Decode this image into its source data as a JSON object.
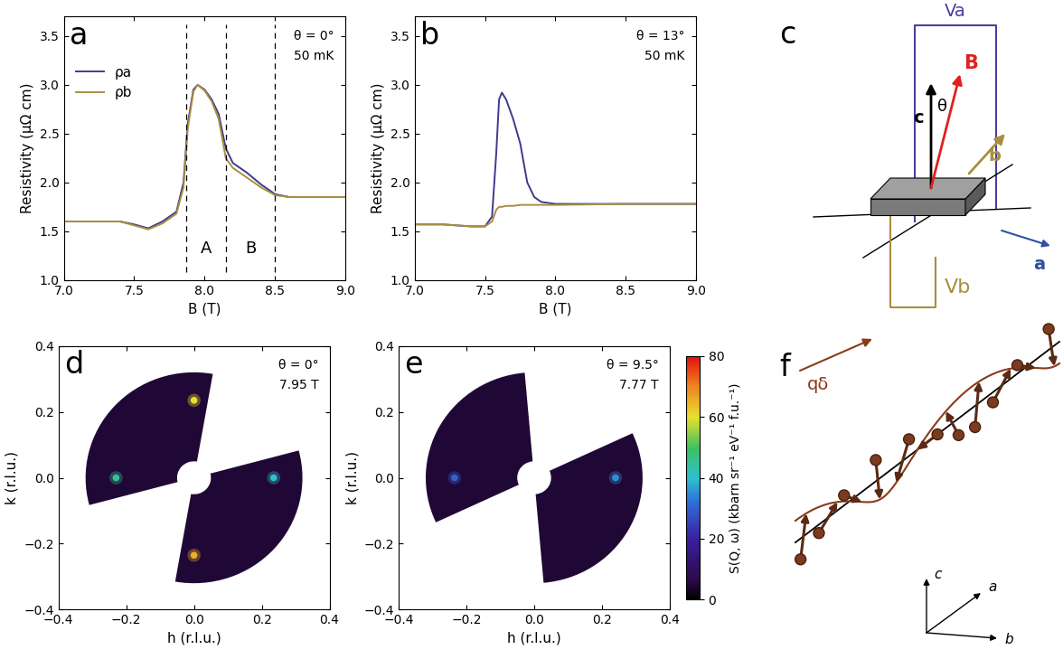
{
  "chart_data": [
    {
      "panel": "a",
      "type": "line",
      "annotations": [
        "θ = 0°",
        "50 mK"
      ],
      "x_label": "B (T)",
      "y_label": "Resistivity (μΩ cm)",
      "x": [
        7.0,
        7.2,
        7.4,
        7.5,
        7.6,
        7.7,
        7.8,
        7.85,
        7.88,
        7.92,
        7.95,
        8.0,
        8.05,
        8.1,
        8.15,
        8.2,
        8.3,
        8.4,
        8.5,
        8.6,
        8.8,
        9.0
      ],
      "series": [
        {
          "name": "ρa",
          "color": "#3f3a8c",
          "values": [
            1.6,
            1.6,
            1.6,
            1.57,
            1.53,
            1.6,
            1.7,
            2.0,
            2.6,
            2.95,
            3.0,
            2.95,
            2.85,
            2.7,
            2.35,
            2.2,
            2.1,
            1.98,
            1.88,
            1.85,
            1.85,
            1.85
          ]
        },
        {
          "name": "ρb",
          "color": "#a88f40",
          "values": [
            1.6,
            1.6,
            1.6,
            1.56,
            1.52,
            1.58,
            1.68,
            1.95,
            2.55,
            2.93,
            3.0,
            2.94,
            2.83,
            2.65,
            2.25,
            2.15,
            2.05,
            1.95,
            1.87,
            1.85,
            1.85,
            1.85
          ]
        }
      ],
      "xlim": [
        7.0,
        9.0
      ],
      "xticks": [
        {
          "value": 7.0,
          "label": "7.0"
        },
        7.5,
        {
          "value": 8.0,
          "label": "8.0"
        },
        8.5,
        {
          "value": 9.0,
          "label": "9.0"
        }
      ],
      "ylim": [
        1.0,
        3.7
      ],
      "yticks": [
        {
          "value": 1.0,
          "label": "1.0"
        },
        1.5,
        {
          "value": 2.0,
          "label": "2.0"
        },
        2.5,
        {
          "value": 3.0,
          "label": "3.0"
        },
        3.5
      ],
      "legend": "upper left",
      "regions": [
        {
          "label": "A",
          "from": 7.87,
          "to": 8.15
        },
        {
          "label": "B",
          "from": 8.15,
          "to": 8.5
        }
      ]
    },
    {
      "panel": "b",
      "type": "line",
      "annotations": [
        "θ = 13°",
        "50 mK"
      ],
      "x_label": "B (T)",
      "y_label": "Resistivity (μΩ cm)",
      "x": [
        7.0,
        7.2,
        7.4,
        7.5,
        7.55,
        7.58,
        7.6,
        7.62,
        7.65,
        7.7,
        7.75,
        7.8,
        7.85,
        7.9,
        8.0,
        8.5,
        9.0
      ],
      "series": [
        {
          "name": "ρa",
          "color": "#3f3a8c",
          "values": [
            1.57,
            1.57,
            1.55,
            1.55,
            1.65,
            2.3,
            2.85,
            2.92,
            2.85,
            2.65,
            2.4,
            2.0,
            1.85,
            1.8,
            1.78,
            1.78,
            1.78
          ]
        },
        {
          "name": "ρb",
          "color": "#a88f40",
          "values": [
            1.57,
            1.57,
            1.55,
            1.55,
            1.6,
            1.72,
            1.75,
            1.75,
            1.76,
            1.76,
            1.77,
            1.77,
            1.77,
            1.77,
            1.77,
            1.78,
            1.78
          ]
        }
      ],
      "xlim": [
        7.0,
        9.0
      ],
      "xticks": [
        {
          "value": 7.0,
          "label": "7.0"
        },
        7.5,
        {
          "value": 8.0,
          "label": "8.0"
        },
        8.5,
        {
          "value": 9.0,
          "label": "9.0"
        }
      ],
      "ylim": [
        1.0,
        3.7
      ],
      "yticks": [
        {
          "value": 1.0,
          "label": "1.0"
        },
        1.5,
        {
          "value": 2.0,
          "label": "2.0"
        },
        2.5,
        {
          "value": 3.0,
          "label": "3.0"
        },
        3.5
      ]
    },
    {
      "panel": "d",
      "type": "heatmap",
      "annotations": [
        "θ = 0°",
        "7.95 T"
      ],
      "x_label": "h (r.l.u.)",
      "y_label": "k (r.l.u.)",
      "peaks": {
        "h": [
          0.0,
          -0.23,
          0.235,
          0.0
        ],
        "k": [
          0.235,
          0.0,
          0.0,
          -0.235
        ],
        "intensity": [
          60,
          45,
          40,
          65
        ]
      },
      "coverage": [
        {
          "r_min": 0.05,
          "r_max": 0.32,
          "angle_from": 80,
          "angle_to": 195
        },
        {
          "r_min": 0.05,
          "r_max": 0.32,
          "angle_from": 260,
          "angle_to": 375
        }
      ],
      "xlim": [
        -0.4,
        0.4
      ],
      "xticks": [
        {
          "value": -0.4,
          "label": "−0.4"
        },
        {
          "value": -0.2,
          "label": "−0.2"
        },
        {
          "value": 0.0,
          "label": "0.0"
        },
        0.2,
        0.4
      ],
      "ylim": [
        -0.4,
        0.4
      ],
      "yticks": [
        {
          "value": -0.4,
          "label": "−0.4"
        },
        {
          "value": -0.2,
          "label": "−0.2"
        },
        {
          "value": 0.0,
          "label": "0.0"
        },
        0.2,
        0.4
      ]
    },
    {
      "panel": "e",
      "type": "heatmap",
      "annotations": [
        "θ = 9.5°",
        "7.77 T"
      ],
      "x_label": "h (r.l.u.)",
      "y_label": "k (r.l.u.)",
      "peaks": {
        "h": [
          -0.235,
          0.24
        ],
        "k": [
          0.0,
          0.0
        ],
        "intensity": [
          30,
          35
        ]
      },
      "coverage": [
        {
          "r_min": 0.05,
          "r_max": 0.32,
          "angle_from": 95,
          "angle_to": 205
        },
        {
          "r_min": 0.05,
          "r_max": 0.32,
          "angle_from": 275,
          "angle_to": 385
        }
      ],
      "xlim": [
        -0.4,
        0.4
      ],
      "xticks": [
        {
          "value": -0.4,
          "label": "−0.4"
        },
        {
          "value": -0.2,
          "label": "−0.2"
        },
        {
          "value": 0.0,
          "label": "0.0"
        },
        0.2,
        0.4
      ],
      "ylim": [
        -0.4,
        0.4
      ],
      "yticks": [
        {
          "value": -0.4,
          "label": "−0.4"
        },
        {
          "value": -0.2,
          "label": "−0.2"
        },
        {
          "value": 0.0,
          "label": "0.0"
        },
        0.2,
        0.4
      ]
    }
  ],
  "colorbar": {
    "range": [
      0,
      80
    ],
    "ticks": [
      0,
      20,
      40,
      60,
      80
    ],
    "label": "S(Q, ω) (kbarn sr⁻¹ eV⁻¹ f.u.⁻¹)"
  },
  "diagrams": [
    {
      "panel": "c",
      "labels": {
        "voltage_a": "Va",
        "field": "B",
        "angle": "θ",
        "c_axis": "c",
        "b_axis": "b",
        "a_axis": "a",
        "voltage_b": "Vb"
      }
    },
    {
      "panel": "f",
      "labels": {
        "wavevector": "qδ",
        "c_axis": "c",
        "a_axis": "a",
        "b_axis": "b"
      }
    }
  ]
}
